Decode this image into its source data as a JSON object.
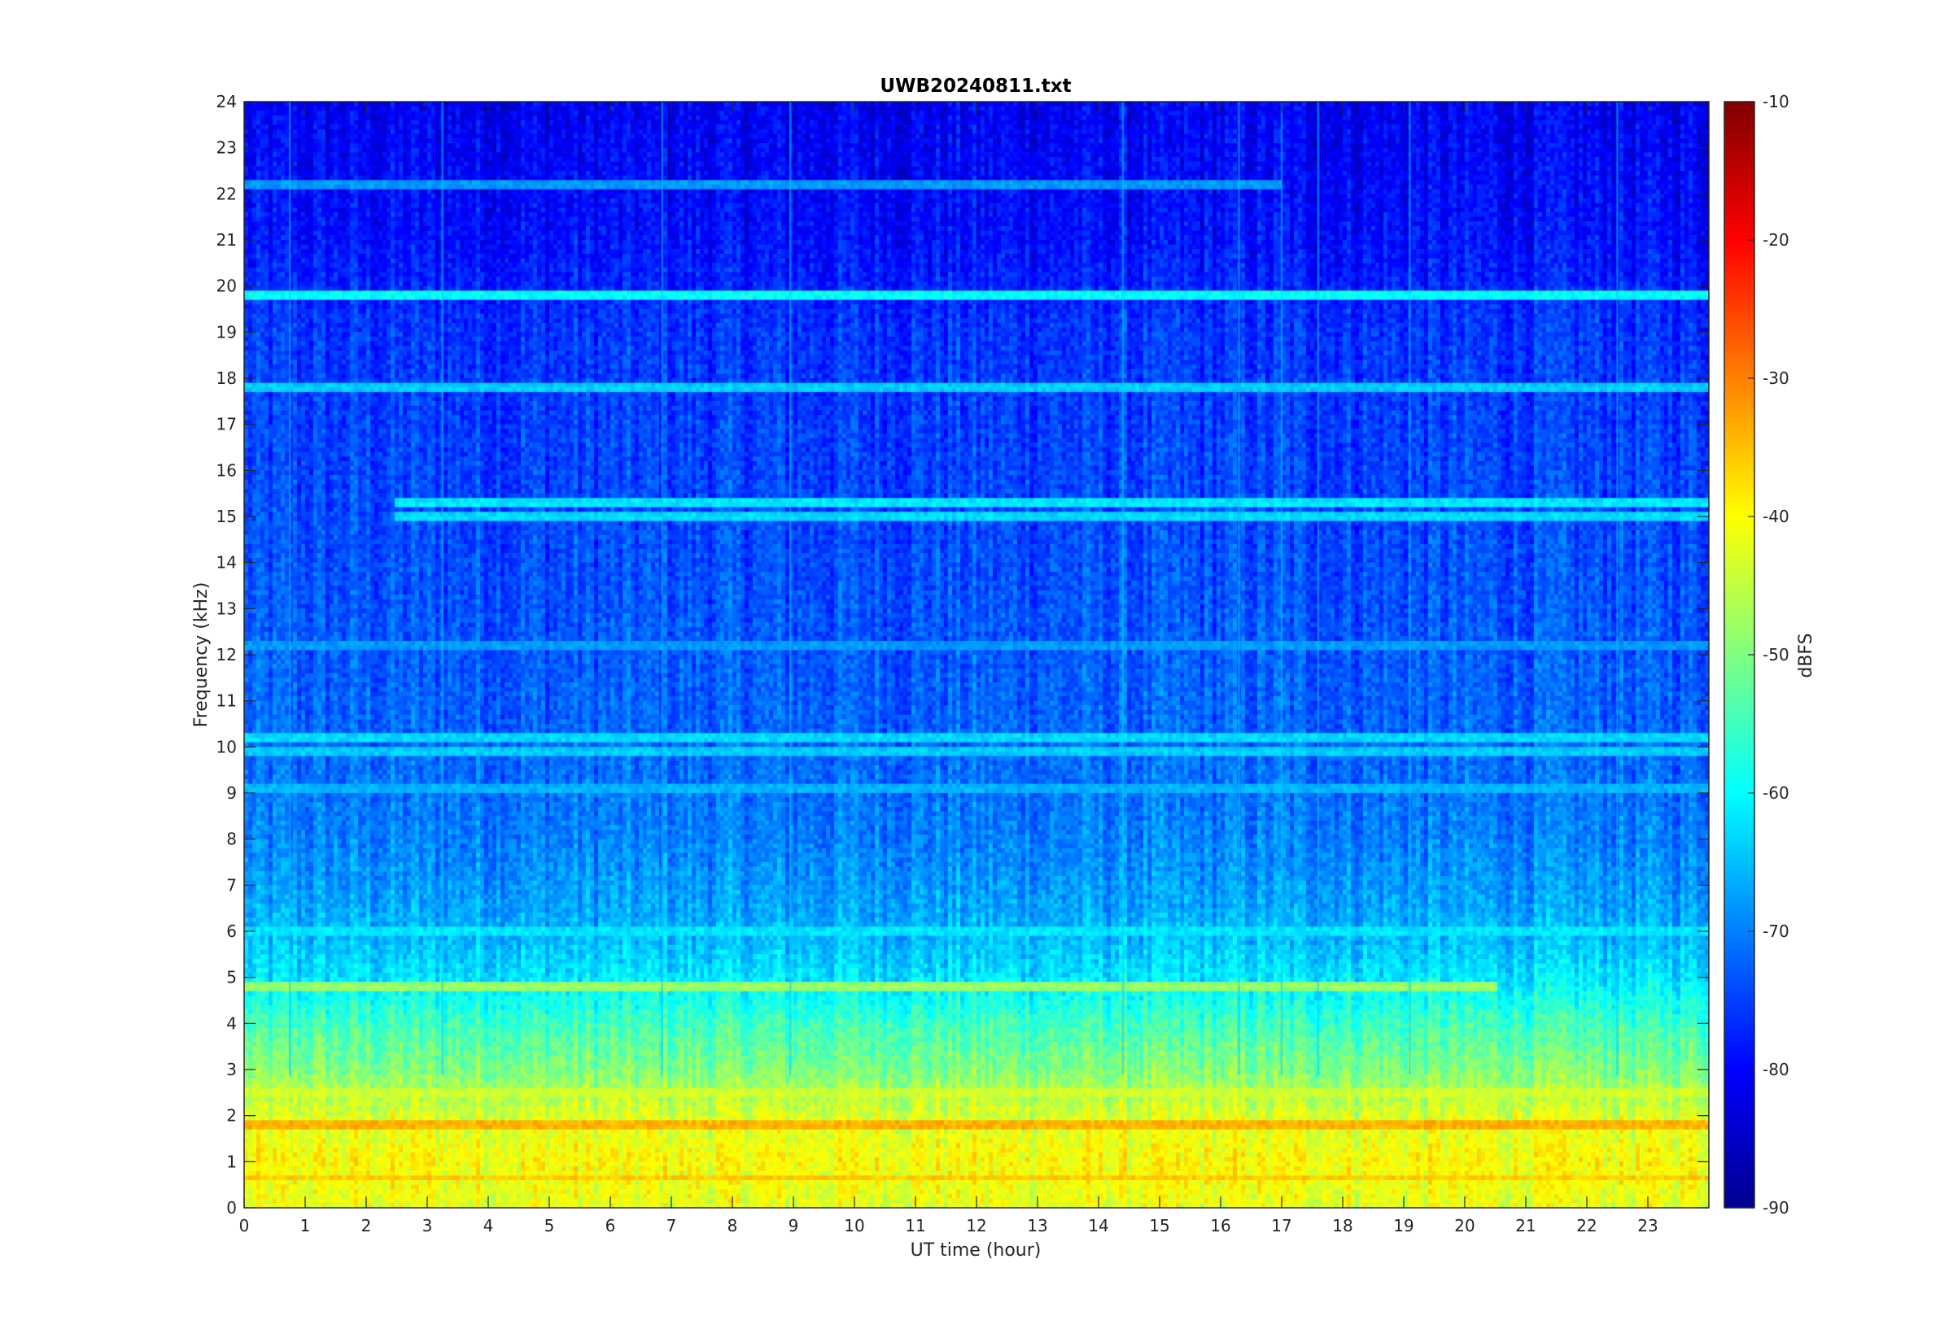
{
  "chart_data": {
    "type": "heatmap",
    "title": "UWB20240811.txt",
    "xlabel": "UT time (hour)",
    "ylabel": "Frequency (kHz)",
    "colorbar_label": "dBFS",
    "colormap": "jet",
    "xlim": [
      0,
      24
    ],
    "ylim": [
      0,
      24
    ],
    "clim": [
      -90,
      -10
    ],
    "x_ticks": [
      0,
      1,
      2,
      3,
      4,
      5,
      6,
      7,
      8,
      9,
      10,
      11,
      12,
      13,
      14,
      15,
      16,
      17,
      18,
      19,
      20,
      21,
      22,
      23
    ],
    "y_ticks": [
      0,
      1,
      2,
      3,
      4,
      5,
      6,
      7,
      8,
      9,
      10,
      11,
      12,
      13,
      14,
      15,
      16,
      17,
      18,
      19,
      20,
      21,
      22,
      23,
      24
    ],
    "colorbar_ticks": [
      -10,
      -20,
      -30,
      -40,
      -50,
      -60,
      -70,
      -80,
      -90
    ],
    "background_profile": [
      {
        "freq_khz": 0,
        "dbfs": -42
      },
      {
        "freq_khz": 1,
        "dbfs": -40
      },
      {
        "freq_khz": 2,
        "dbfs": -43
      },
      {
        "freq_khz": 3,
        "dbfs": -50
      },
      {
        "freq_khz": 4,
        "dbfs": -55
      },
      {
        "freq_khz": 5,
        "dbfs": -62
      },
      {
        "freq_khz": 6,
        "dbfs": -66
      },
      {
        "freq_khz": 8,
        "dbfs": -70
      },
      {
        "freq_khz": 10,
        "dbfs": -72
      },
      {
        "freq_khz": 14,
        "dbfs": -74
      },
      {
        "freq_khz": 19,
        "dbfs": -76
      },
      {
        "freq_khz": 21,
        "dbfs": -79
      },
      {
        "freq_khz": 24,
        "dbfs": -81
      }
    ],
    "tone_lines": [
      {
        "freq_khz": 19.8,
        "dbfs": -60,
        "t_start": 0,
        "t_end": 24
      },
      {
        "freq_khz": 17.8,
        "dbfs": -64,
        "t_start": 0,
        "t_end": 24
      },
      {
        "freq_khz": 22.2,
        "dbfs": -68,
        "t_start": 0,
        "t_end": 17
      },
      {
        "freq_khz": 15.3,
        "dbfs": -62,
        "t_start": 2.5,
        "t_end": 24
      },
      {
        "freq_khz": 15.0,
        "dbfs": -63,
        "t_start": 2.5,
        "t_end": 24
      },
      {
        "freq_khz": 10.2,
        "dbfs": -63,
        "t_start": 0,
        "t_end": 24
      },
      {
        "freq_khz": 9.9,
        "dbfs": -64,
        "t_start": 0,
        "t_end": 24
      },
      {
        "freq_khz": 12.2,
        "dbfs": -68,
        "t_start": 0,
        "t_end": 24
      },
      {
        "freq_khz": 9.1,
        "dbfs": -66,
        "t_start": 0,
        "t_end": 24
      },
      {
        "freq_khz": 6.0,
        "dbfs": -62,
        "t_start": 0,
        "t_end": 24
      },
      {
        "freq_khz": 4.8,
        "dbfs": -48,
        "t_start": 0,
        "t_end": 20.5
      },
      {
        "freq_khz": 2.5,
        "dbfs": -44,
        "t_start": 0,
        "t_end": 24
      },
      {
        "freq_khz": 1.8,
        "dbfs": -34,
        "t_start": 0,
        "t_end": 24
      },
      {
        "freq_khz": 0.65,
        "dbfs": -36,
        "t_start": 0,
        "t_end": 24
      }
    ],
    "vertical_streaks": [
      0.75,
      3.25,
      6.85,
      8.95,
      14.4,
      16.3,
      17.0,
      17.6,
      19.1,
      22.5
    ]
  }
}
